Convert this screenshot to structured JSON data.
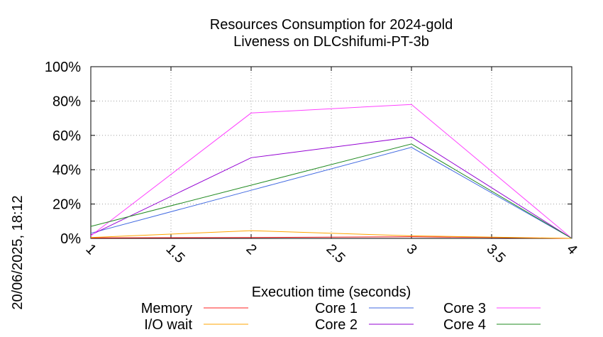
{
  "chart_data": {
    "type": "line",
    "title": "Resources Consumption for 2024-gold",
    "subtitle": "Liveness on DLCshifumi-PT-3b",
    "xlabel": "Execution time (seconds)",
    "ylabel": "",
    "timestamp": "20/06/2025, 18:12",
    "xlim": [
      1,
      4
    ],
    "ylim": [
      0,
      100
    ],
    "x_ticks": [
      {
        "value": 1,
        "label": "1"
      },
      {
        "value": 1.5,
        "label": "1.5"
      },
      {
        "value": 2,
        "label": "2"
      },
      {
        "value": 2.5,
        "label": "2.5"
      },
      {
        "value": 3,
        "label": "3"
      },
      {
        "value": 3.5,
        "label": "3.5"
      },
      {
        "value": 4,
        "label": "4"
      }
    ],
    "y_ticks": [
      {
        "value": 0,
        "label": "0%"
      },
      {
        "value": 20,
        "label": "20%"
      },
      {
        "value": 40,
        "label": "40%"
      },
      {
        "value": 60,
        "label": "60%"
      },
      {
        "value": 80,
        "label": "80%"
      },
      {
        "value": 100,
        "label": "100%"
      }
    ],
    "grid": true,
    "legend_position": "bottom",
    "series": [
      {
        "name": "Memory",
        "color": "#ff2020",
        "x": [
          1,
          2,
          3,
          4
        ],
        "values": [
          0.3,
          0.5,
          1.0,
          0
        ]
      },
      {
        "name": "I/O wait",
        "color": "#ffa500",
        "x": [
          1,
          2,
          3,
          4
        ],
        "values": [
          0.5,
          4.5,
          1.5,
          0
        ]
      },
      {
        "name": "Core 1",
        "color": "#4169e1",
        "x": [
          1,
          2,
          3,
          4
        ],
        "values": [
          3,
          28,
          53,
          0
        ]
      },
      {
        "name": "Core 2",
        "color": "#9400d3",
        "x": [
          1,
          2,
          3,
          4
        ],
        "values": [
          2,
          47,
          59,
          0
        ]
      },
      {
        "name": "Core 3",
        "color": "#ff40ff",
        "x": [
          1,
          2,
          3,
          4
        ],
        "values": [
          1.5,
          73,
          78,
          0
        ]
      },
      {
        "name": "Core 4",
        "color": "#228b22",
        "x": [
          1,
          2,
          3,
          4
        ],
        "values": [
          7,
          31,
          55,
          0
        ]
      }
    ]
  }
}
